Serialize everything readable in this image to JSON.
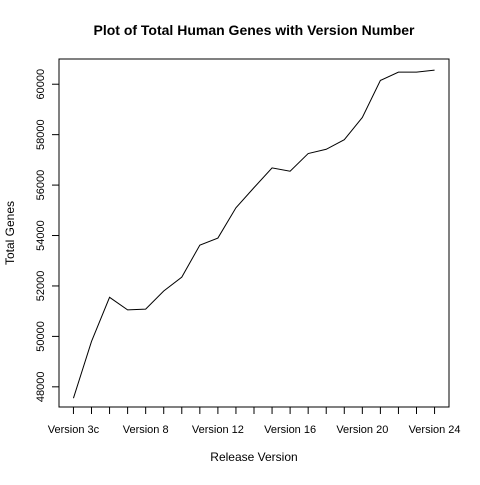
{
  "chart_data": {
    "type": "line",
    "title": "Plot of Total Human Genes with Version Number",
    "xlabel": "Release Version",
    "ylabel": "Total Genes",
    "x_tick_labels": [
      "Version 3c",
      "Version 8",
      "Version 12",
      "Version 16",
      "Version 20",
      "Version 24"
    ],
    "x_tick_label_indices": [
      1,
      5,
      9,
      13,
      17,
      21
    ],
    "y_ticks": [
      48000,
      50000,
      52000,
      54000,
      56000,
      58000,
      60000
    ],
    "y_tick_labels": [
      "48000",
      "50000",
      "52000",
      "54000",
      "56000",
      "58000",
      "60000"
    ],
    "ylim": [
      47200,
      61000
    ],
    "series": [
      {
        "values": [
          47550,
          49800,
          51550,
          51050,
          51080,
          51800,
          52350,
          53620,
          53900,
          55100,
          55900,
          56680,
          56550,
          57250,
          57420,
          57800,
          58680,
          60150,
          60480,
          60480,
          60560
        ]
      }
    ],
    "grid": false,
    "line_color": "#000000",
    "axis_color": "#000000"
  }
}
